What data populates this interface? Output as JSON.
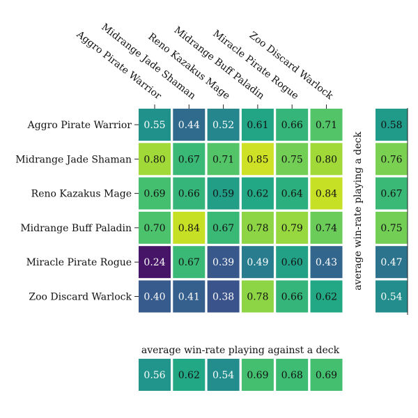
{
  "chart_data": {
    "type": "heatmap",
    "title": "",
    "rows": [
      "Aggro Pirate Warrior",
      "Midrange Jade Shaman",
      "Reno Kazakus Mage",
      "Midrange Buff Paladin",
      "Miracle Pirate Rogue",
      "Zoo Discard Warlock"
    ],
    "columns": [
      "Aggro Pirate Warrior",
      "Midrange Jade Shaman",
      "Reno Kazakus Mage",
      "Midrange Buff Paladin",
      "Miracle Pirate Rogue",
      "Zoo Discard Warlock"
    ],
    "values": [
      [
        0.55,
        0.44,
        0.52,
        0.61,
        0.66,
        0.71
      ],
      [
        0.8,
        0.67,
        0.71,
        0.85,
        0.75,
        0.8
      ],
      [
        0.69,
        0.66,
        0.59,
        0.62,
        0.64,
        0.84
      ],
      [
        0.7,
        0.84,
        0.67,
        0.78,
        0.79,
        0.74
      ],
      [
        0.24,
        0.67,
        0.39,
        0.49,
        0.6,
        0.43
      ],
      [
        0.4,
        0.41,
        0.38,
        0.78,
        0.66,
        0.62
      ]
    ],
    "row_average": {
      "label": "average win-rate playing a deck",
      "values": [
        0.58,
        0.76,
        0.67,
        0.75,
        0.47,
        0.54
      ]
    },
    "column_average": {
      "label": "average win-rate playing against a deck",
      "values": [
        0.56,
        0.62,
        0.54,
        0.69,
        0.68,
        0.69
      ]
    },
    "colormap": "viridis",
    "color_range": [
      0.2,
      0.9
    ]
  }
}
